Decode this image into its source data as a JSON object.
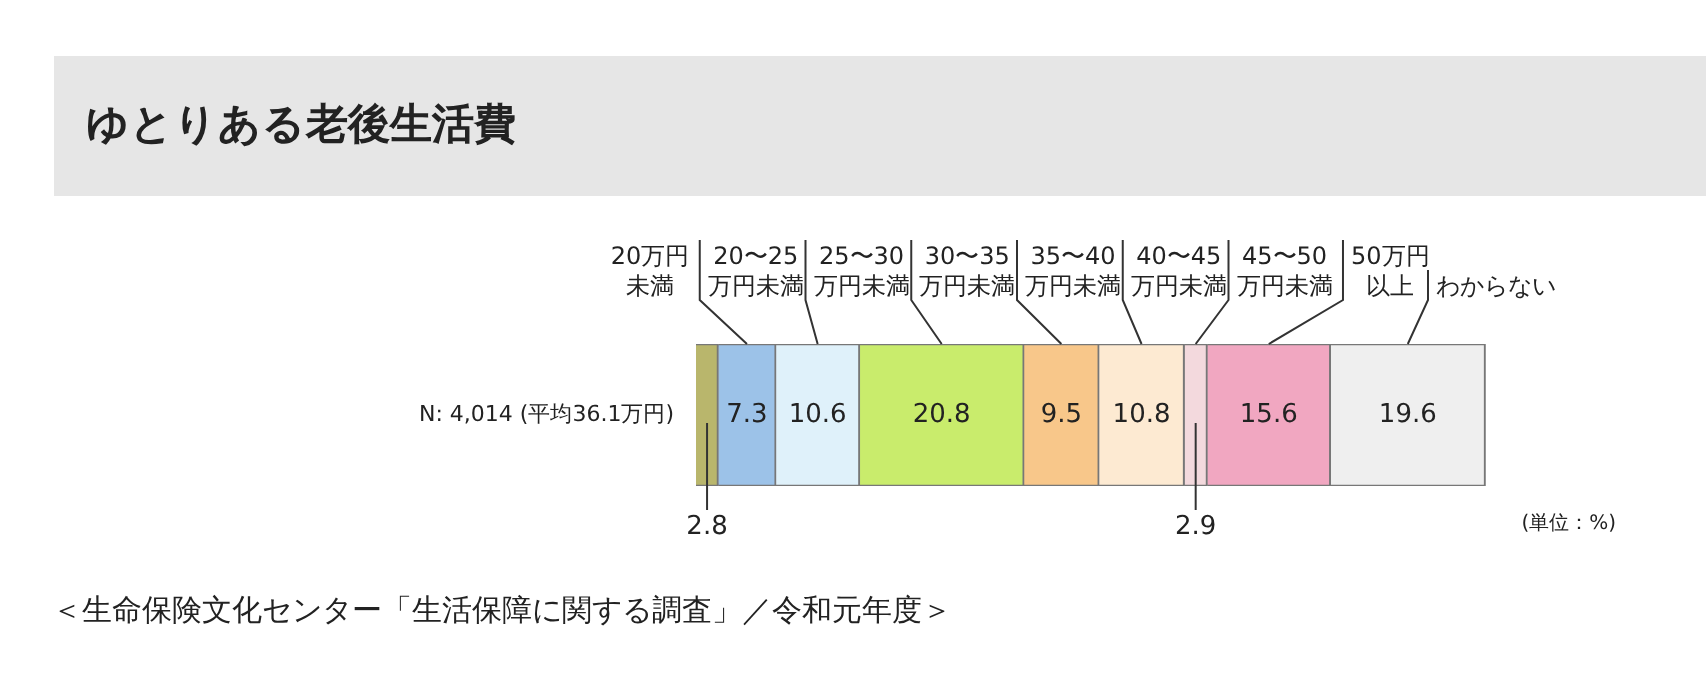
{
  "chart_data": {
    "type": "bar",
    "orientation": "horizontal",
    "stacked": true,
    "title": "ゆとりある老後生活費",
    "categories": [
      "N: 4,014 (平均36.1万円)"
    ],
    "series": [
      {
        "name": "20万円未満",
        "color": "#b9b66c",
        "values": [
          2.8
        ]
      },
      {
        "name": "20〜25万円未満",
        "color": "#9cc2e8",
        "values": [
          7.3
        ]
      },
      {
        "name": "25〜30万円未満",
        "color": "#dff1fa",
        "values": [
          10.6
        ]
      },
      {
        "name": "30〜35万円未満",
        "color": "#c9ec6c",
        "values": [
          20.8
        ]
      },
      {
        "name": "35〜40万円未満",
        "color": "#f8c78a",
        "values": [
          9.5
        ]
      },
      {
        "name": "40〜45万円未満",
        "color": "#fdead2",
        "values": [
          10.8
        ]
      },
      {
        "name": "45〜50万円未満",
        "color": "#f3d9dd",
        "values": [
          2.9
        ]
      },
      {
        "name": "50万円以上",
        "color": "#f1a7c1",
        "values": [
          15.6
        ]
      },
      {
        "name": "わからない",
        "color": "#efefef",
        "values": [
          19.6
        ]
      }
    ],
    "data_labels": true,
    "legend": false,
    "annotations": [
      "(単位：%)",
      "＜生命保険文化センター「生活保障に関する調査」／令和元年度＞"
    ]
  }
}
